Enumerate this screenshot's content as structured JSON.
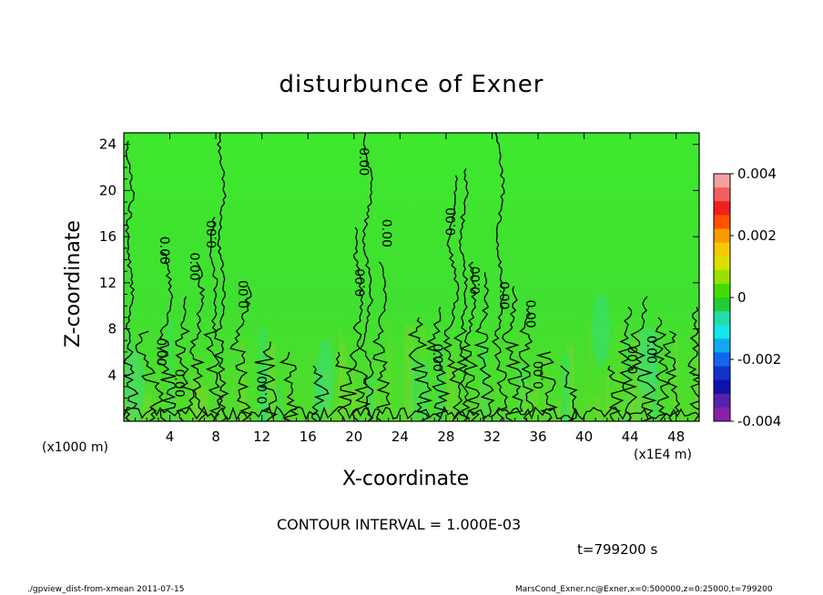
{
  "chart_data": {
    "type": "heatmap",
    "title": "disturbunce of Exner",
    "xlabel": "X-coordinate",
    "ylabel": "Z-coordinate",
    "x_unit_label": "(x1000 m)",
    "x_multiplier_label": "(x1E4 m)",
    "xlim": [
      0,
      50
    ],
    "ylim": [
      0,
      25
    ],
    "xticks": [
      4,
      8,
      12,
      16,
      20,
      24,
      28,
      32,
      36,
      40,
      44,
      48
    ],
    "yticks": [
      4,
      8,
      12,
      16,
      20,
      24
    ],
    "colorbar": {
      "range": [
        -0.004,
        0.004
      ],
      "tick_labels": [
        "0.004",
        "0.002",
        "0",
        "-0.002",
        "-0.004"
      ],
      "colors": [
        "#f5a0a0",
        "#f06060",
        "#ee2020",
        "#ff5000",
        "#ff9900",
        "#f5c800",
        "#d8e000",
        "#9ae000",
        "#44dd00",
        "#22cc33",
        "#22ddaa",
        "#11e8e8",
        "#11aaee",
        "#1166ee",
        "#1133cc",
        "#1111aa",
        "#5522aa",
        "#8822aa"
      ]
    },
    "contour_interval": "CONTOUR INTERVAL = 1.000E-03",
    "contour_label": "0.00",
    "contour_labels": [
      {
        "x": 3.5,
        "z": 14.8,
        "rot": 90
      },
      {
        "x": 6.1,
        "z": 13.4,
        "rot": 90
      },
      {
        "x": 7.7,
        "z": 16.2,
        "rot": -90
      },
      {
        "x": 10.5,
        "z": 11.0,
        "rot": -90
      },
      {
        "x": 12.1,
        "z": 2.7,
        "rot": -90
      },
      {
        "x": 20.8,
        "z": 22.5,
        "rot": 90
      },
      {
        "x": 20.6,
        "z": 12.0,
        "rot": -90
      },
      {
        "x": 22.8,
        "z": 16.3,
        "rot": 90
      },
      {
        "x": 27.2,
        "z": 5.5,
        "rot": 90
      },
      {
        "x": 28.5,
        "z": 17.3,
        "rot": -90
      },
      {
        "x": 30.6,
        "z": 12.2,
        "rot": -90
      },
      {
        "x": 33.0,
        "z": 10.9,
        "rot": 90
      },
      {
        "x": 35.3,
        "z": 9.3,
        "rot": 90
      },
      {
        "x": 36.1,
        "z": 4.0,
        "rot": -90
      },
      {
        "x": 44.3,
        "z": 5.3,
        "rot": -90
      },
      {
        "x": 45.8,
        "z": 6.2,
        "rot": 90
      },
      {
        "x": 3.2,
        "z": 6.0,
        "rot": 90
      },
      {
        "x": 4.8,
        "z": 3.3,
        "rot": 90
      }
    ]
  },
  "footer": {
    "timestamp": "t=799200 s",
    "script_info": "./gpview_dist-from-xmean  2011-07-15",
    "source_info": "MarsCond_Exner.nc@Exner,x=0:500000,z=0:25000,t=799200"
  }
}
